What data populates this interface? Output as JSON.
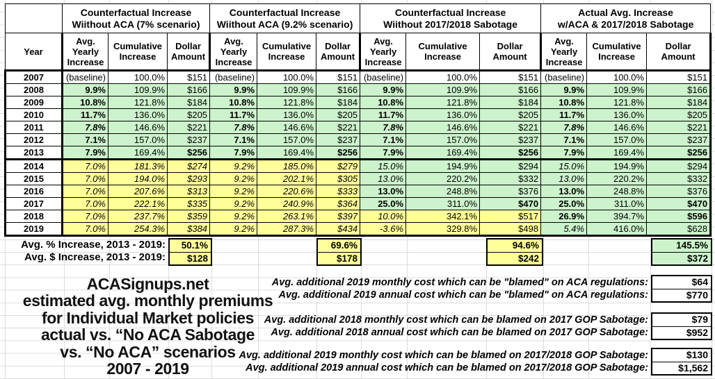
{
  "colors": {
    "green_fill": "#ccf3cc",
    "yellow_fill": "#ffff99",
    "gridline": "#dcdcdc",
    "border": "#000000"
  },
  "table": {
    "year_header": "Year",
    "groups": [
      {
        "title": "Counterfactual Increase\nWiithout ACA (7% scenario)"
      },
      {
        "title": "Counterfactual Increase\nWiithout ACA (9.2% scenario)"
      },
      {
        "title": "Counterfactual Increase\nWiithout 2017/2018 Sabotage"
      },
      {
        "title": "Actual Avg. Increase\nw/ACA & 2017/2018 Sabotage"
      }
    ],
    "sub_headers": [
      "Avg.\nYearly\nIncrease",
      "Cumulative\nIncrease",
      "Dollar\nAmount"
    ],
    "rows": [
      {
        "year": "2007",
        "groups": [
          {
            "cells": [
              "(baseline)",
              "100.0%",
              "$151"
            ],
            "styles": [
              "n",
              "n",
              "n"
            ],
            "bg": "w"
          },
          {
            "cells": [
              "(baseline)",
              "100.0%",
              "$151"
            ],
            "styles": [
              "n",
              "n",
              "n"
            ],
            "bg": "w"
          },
          {
            "cells": [
              "(baseline)",
              "100.0%",
              "$151"
            ],
            "styles": [
              "n",
              "n",
              "n"
            ],
            "bg": "w"
          },
          {
            "cells": [
              "(baseline)",
              "100.0%",
              "$151"
            ],
            "styles": [
              "n",
              "n",
              "n"
            ],
            "bg": "w"
          }
        ]
      },
      {
        "year": "2008",
        "groups": [
          {
            "cells": [
              "9.9%",
              "109.9%",
              "$166"
            ],
            "styles": [
              "b",
              "n",
              "n"
            ],
            "bg": "g"
          },
          {
            "cells": [
              "9.9%",
              "109.9%",
              "$166"
            ],
            "styles": [
              "b",
              "n",
              "n"
            ],
            "bg": "g"
          },
          {
            "cells": [
              "9.9%",
              "109.9%",
              "$166"
            ],
            "styles": [
              "b",
              "n",
              "n"
            ],
            "bg": "g"
          },
          {
            "cells": [
              "9.9%",
              "109.9%",
              "$166"
            ],
            "styles": [
              "b",
              "n",
              "n"
            ],
            "bg": "g"
          }
        ]
      },
      {
        "year": "2009",
        "groups": [
          {
            "cells": [
              "10.8%",
              "121.8%",
              "$184"
            ],
            "styles": [
              "b",
              "n",
              "n"
            ],
            "bg": "g"
          },
          {
            "cells": [
              "10.8%",
              "121.8%",
              "$184"
            ],
            "styles": [
              "b",
              "n",
              "n"
            ],
            "bg": "g"
          },
          {
            "cells": [
              "10.8%",
              "121.8%",
              "$184"
            ],
            "styles": [
              "b",
              "n",
              "n"
            ],
            "bg": "g"
          },
          {
            "cells": [
              "10.8%",
              "121.8%",
              "$184"
            ],
            "styles": [
              "b",
              "n",
              "n"
            ],
            "bg": "g"
          }
        ]
      },
      {
        "year": "2010",
        "groups": [
          {
            "cells": [
              "11.7%",
              "136.0%",
              "$205"
            ],
            "styles": [
              "b",
              "n",
              "n"
            ],
            "bg": "g"
          },
          {
            "cells": [
              "11.7%",
              "136.0%",
              "$205"
            ],
            "styles": [
              "b",
              "n",
              "n"
            ],
            "bg": "g"
          },
          {
            "cells": [
              "11.7%",
              "136.0%",
              "$205"
            ],
            "styles": [
              "b",
              "n",
              "n"
            ],
            "bg": "g"
          },
          {
            "cells": [
              "11.7%",
              "136.0%",
              "$205"
            ],
            "styles": [
              "b",
              "n",
              "n"
            ],
            "bg": "g"
          }
        ]
      },
      {
        "year": "2011",
        "groups": [
          {
            "cells": [
              "7.8%",
              "146.6%",
              "$221"
            ],
            "styles": [
              "bi",
              "n",
              "n"
            ],
            "bg": "g"
          },
          {
            "cells": [
              "7.8%",
              "146.6%",
              "$221"
            ],
            "styles": [
              "bi",
              "n",
              "n"
            ],
            "bg": "g"
          },
          {
            "cells": [
              "7.8%",
              "146.6%",
              "$221"
            ],
            "styles": [
              "bi",
              "n",
              "n"
            ],
            "bg": "g"
          },
          {
            "cells": [
              "7.8%",
              "146.6%",
              "$221"
            ],
            "styles": [
              "bi",
              "n",
              "n"
            ],
            "bg": "g"
          }
        ]
      },
      {
        "year": "2012",
        "groups": [
          {
            "cells": [
              "7.1%",
              "157.0%",
              "$237"
            ],
            "styles": [
              "b",
              "n",
              "n"
            ],
            "bg": "g"
          },
          {
            "cells": [
              "7.1%",
              "157.0%",
              "$237"
            ],
            "styles": [
              "b",
              "n",
              "n"
            ],
            "bg": "g"
          },
          {
            "cells": [
              "7.1%",
              "157.0%",
              "$237"
            ],
            "styles": [
              "b",
              "n",
              "n"
            ],
            "bg": "g"
          },
          {
            "cells": [
              "7.1%",
              "157.0%",
              "$237"
            ],
            "styles": [
              "b",
              "n",
              "n"
            ],
            "bg": "g"
          }
        ]
      },
      {
        "year": "2013",
        "groups": [
          {
            "cells": [
              "7.9%",
              "169.4%",
              "$256"
            ],
            "styles": [
              "b",
              "n",
              "b"
            ],
            "bg": "g"
          },
          {
            "cells": [
              "7.9%",
              "169.4%",
              "$256"
            ],
            "styles": [
              "b",
              "n",
              "b"
            ],
            "bg": "g"
          },
          {
            "cells": [
              "7.9%",
              "169.4%",
              "$256"
            ],
            "styles": [
              "b",
              "n",
              "b"
            ],
            "bg": "g"
          },
          {
            "cells": [
              "7.9%",
              "169.4%",
              "$256"
            ],
            "styles": [
              "b",
              "n",
              "b"
            ],
            "bg": "g"
          }
        ]
      },
      {
        "year": "2014",
        "thick_top": true,
        "groups": [
          {
            "cells": [
              "7.0%",
              "181.3%",
              "$274"
            ],
            "styles": [
              "i",
              "i",
              "i"
            ],
            "bg": "y"
          },
          {
            "cells": [
              "9.2%",
              "185.0%",
              "$279"
            ],
            "styles": [
              "i",
              "i",
              "i"
            ],
            "bg": "y"
          },
          {
            "cells": [
              "15.0%",
              "194.9%",
              "$294"
            ],
            "styles": [
              "i",
              "n",
              "n"
            ],
            "bg": "g"
          },
          {
            "cells": [
              "15.0%",
              "194.9%",
              "$294"
            ],
            "styles": [
              "i",
              "n",
              "n"
            ],
            "bg": "g"
          }
        ]
      },
      {
        "year": "2015",
        "groups": [
          {
            "cells": [
              "7.0%",
              "194.0%",
              "$293"
            ],
            "styles": [
              "i",
              "i",
              "i"
            ],
            "bg": "y"
          },
          {
            "cells": [
              "9.2%",
              "202.1%",
              "$305"
            ],
            "styles": [
              "i",
              "i",
              "i"
            ],
            "bg": "y"
          },
          {
            "cells": [
              "13.0%",
              "220.2%",
              "$332"
            ],
            "styles": [
              "i",
              "n",
              "n"
            ],
            "bg": "g"
          },
          {
            "cells": [
              "13.0%",
              "220.2%",
              "$332"
            ],
            "styles": [
              "i",
              "n",
              "n"
            ],
            "bg": "g"
          }
        ]
      },
      {
        "year": "2016",
        "groups": [
          {
            "cells": [
              "7.0%",
              "207.6%",
              "$313"
            ],
            "styles": [
              "i",
              "i",
              "i"
            ],
            "bg": "y"
          },
          {
            "cells": [
              "9.2%",
              "220.6%",
              "$333"
            ],
            "styles": [
              "i",
              "i",
              "i"
            ],
            "bg": "y"
          },
          {
            "cells": [
              "13.0%",
              "248.8%",
              "$376"
            ],
            "styles": [
              "b",
              "n",
              "n"
            ],
            "bg": "g"
          },
          {
            "cells": [
              "13.0%",
              "248.8%",
              "$376"
            ],
            "styles": [
              "b",
              "n",
              "n"
            ],
            "bg": "g"
          }
        ]
      },
      {
        "year": "2017",
        "groups": [
          {
            "cells": [
              "7.0%",
              "222.1%",
              "$335"
            ],
            "styles": [
              "i",
              "i",
              "i"
            ],
            "bg": "y"
          },
          {
            "cells": [
              "9.2%",
              "240.9%",
              "$364"
            ],
            "styles": [
              "i",
              "i",
              "i"
            ],
            "bg": "y"
          },
          {
            "cells": [
              "25.0%",
              "311.0%",
              "$470"
            ],
            "styles": [
              "b",
              "n",
              "b"
            ],
            "bg": "g",
            "thick_bottom": true
          },
          {
            "cells": [
              "25.0%",
              "311.0%",
              "$470"
            ],
            "styles": [
              "b",
              "n",
              "b"
            ],
            "bg": "g"
          }
        ]
      },
      {
        "year": "2018",
        "groups": [
          {
            "cells": [
              "7.0%",
              "237.7%",
              "$359"
            ],
            "styles": [
              "i",
              "i",
              "i"
            ],
            "bg": "y"
          },
          {
            "cells": [
              "9.2%",
              "263.1%",
              "$397"
            ],
            "styles": [
              "i",
              "i",
              "i"
            ],
            "bg": "y"
          },
          {
            "cells": [
              "10.0%",
              "342.1%",
              "$517"
            ],
            "styles": [
              "i",
              "n",
              "n"
            ],
            "bg": "y"
          },
          {
            "cells": [
              "26.9%",
              "394.7%",
              "$596"
            ],
            "styles": [
              "b",
              "n",
              "b"
            ],
            "bg": "g"
          }
        ]
      },
      {
        "year": "2019",
        "groups": [
          {
            "cells": [
              "7.0%",
              "254.3%",
              "$384"
            ],
            "styles": [
              "i",
              "i",
              "i"
            ],
            "bg": "y"
          },
          {
            "cells": [
              "9.2%",
              "287.3%",
              "$434"
            ],
            "styles": [
              "i",
              "i",
              "i"
            ],
            "bg": "y"
          },
          {
            "cells": [
              "-3.6%",
              "329.8%",
              "$498"
            ],
            "styles": [
              "i",
              "n",
              "n"
            ],
            "bg": "y"
          },
          {
            "cells": [
              "5.4%",
              "416.0%",
              "$628"
            ],
            "styles": [
              "i",
              "n",
              "n"
            ],
            "bg": "g"
          }
        ]
      }
    ]
  },
  "summary": {
    "pct_label": "Avg. % Increase, 2013 - 2019:",
    "usd_label": "Avg. $ Increase, 2013 - 2019:",
    "pct_values": [
      "50.1%",
      "69.6%",
      "94.6%",
      "145.5%"
    ],
    "usd_values": [
      "$128",
      "$178",
      "$242",
      "$372"
    ]
  },
  "footer_note": {
    "lines": [
      "ACASignups.net",
      "estimated avg. monthly premiums",
      "for Individual Market policies",
      "actual vs. “No ACA Sabotage",
      "vs. “No ACA” scenarios",
      "2007 - 2019"
    ]
  },
  "annotations": [
    {
      "label": "Avg. additional 2019 monthly cost which can be \"blamed\" on ACA regulations:",
      "value": "$64"
    },
    {
      "label": "Avg. additional 2019 annual cost which can be \"blamed\" on ACA regulations:",
      "value": "$770"
    },
    {
      "label": "Avg. additional 2018 monthly cost which can be blamed on 2017 GOP Sabotage:",
      "value": "$79"
    },
    {
      "label": "Avg. additional 2018 annual cost which can be blamed on 2017 GOP Sabotage:",
      "value": "$952"
    },
    {
      "label": "Avg. additional 2019 monthly cost which can be blamed on 2017/2018 GOP Sabotage:",
      "value": "$130"
    },
    {
      "label": "Avg. additional 2019 annual cost which can be blamed on 2017/2018 GOP Sabotage:",
      "value": "$1,562"
    }
  ]
}
